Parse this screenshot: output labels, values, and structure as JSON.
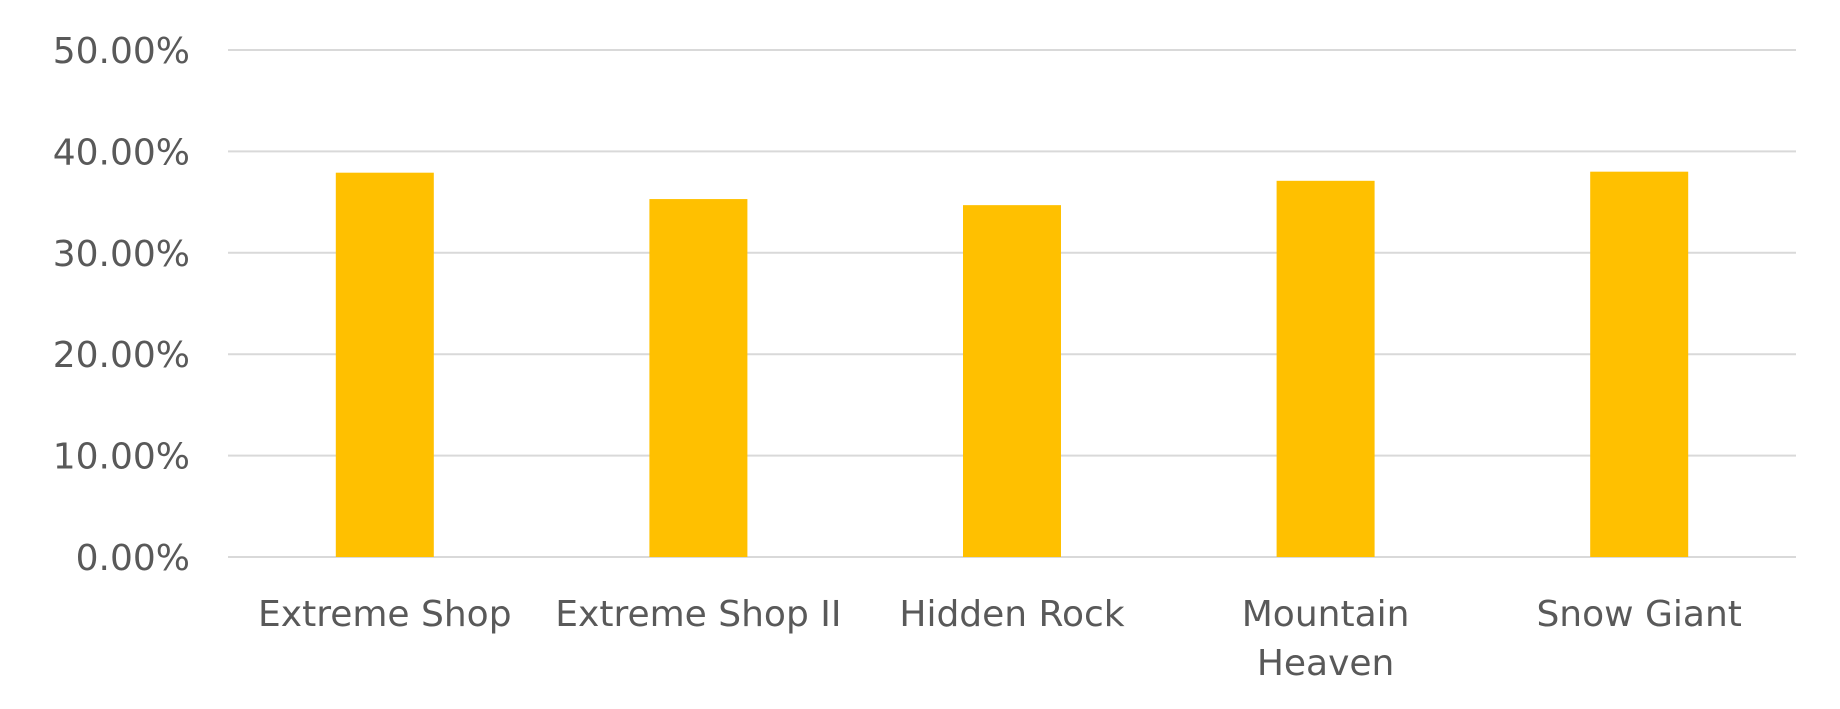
{
  "chart_data": {
    "type": "bar",
    "title": "",
    "xlabel": "",
    "ylabel": "",
    "categories": [
      "Extreme Shop",
      "Extreme Shop II",
      "Hidden Rock",
      "Mountain Heaven",
      "Snow Giant"
    ],
    "values": [
      0.379,
      0.353,
      0.347,
      0.371,
      0.38
    ],
    "ylim": [
      0,
      0.5
    ],
    "y_ticks": [
      0,
      0.1,
      0.2,
      0.3,
      0.4,
      0.5
    ],
    "y_tick_labels": [
      "0.00%",
      "10.00%",
      "20.00%",
      "30.00%",
      "40.00%",
      "50.00%"
    ],
    "grid": true,
    "legend": "none",
    "colors": {
      "bar": "#FFC000",
      "grid": "#D9D9D9",
      "text": "#595959"
    }
  }
}
